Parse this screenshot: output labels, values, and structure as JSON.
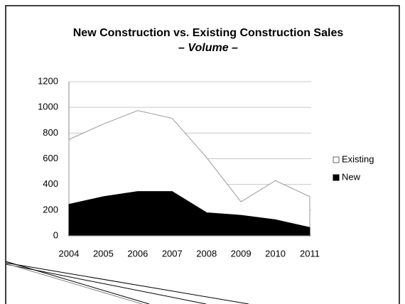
{
  "chart_data": {
    "type": "area",
    "title": "New Construction vs. Existing Construction Sales",
    "subtitle": "– Volume –",
    "categories": [
      "2004",
      "2005",
      "2006",
      "2007",
      "2008",
      "2009",
      "2010",
      "2011"
    ],
    "series": [
      {
        "name": "Existing",
        "color": "#ffffff",
        "values": [
          750,
          870,
          975,
          915,
          610,
          265,
          430,
          305
        ]
      },
      {
        "name": "New",
        "color": "#000000",
        "values": [
          245,
          305,
          345,
          345,
          180,
          160,
          125,
          65
        ]
      }
    ],
    "ylim": [
      0,
      1200
    ],
    "yticks": [
      0,
      200,
      400,
      600,
      800,
      1000,
      1200
    ],
    "grid": true,
    "legend": "right"
  }
}
